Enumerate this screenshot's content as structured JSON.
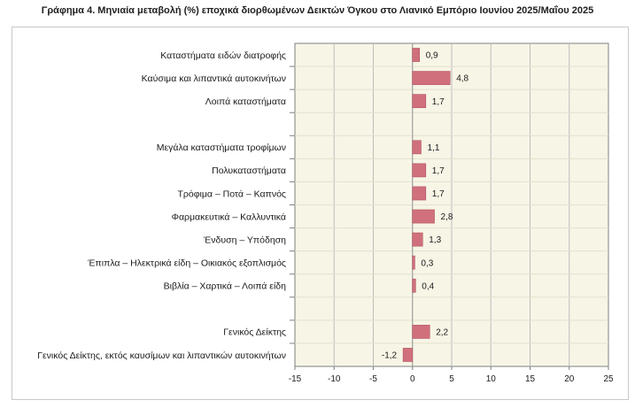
{
  "title": "Γράφημα 4. Μηνιαία μεταβολή (%) εποχικά διορθωμένων Δεικτών Όγκου στο Λιανικό Εμπόριο Ιουνίου 2025/Μαΐου 2025",
  "chart_data": {
    "type": "bar",
    "orientation": "horizontal",
    "categories": [
      "Καταστήματα ειδών διατροφής",
      "Καύσιμα και λιπαντικά αυτοκινήτων",
      "Λοιπά καταστήματα",
      "",
      "Μεγάλα καταστήματα τροφίμων",
      "Πολυκαταστήματα",
      "Τρόφιμα – Ποτά – Καπνός",
      "Φαρμακευτικά – Καλλυντικά",
      "Ένδυση – Υπόδηση",
      "Έπιπλα – Ηλεκτρικά είδη – Οικιακός εξοπλισμός",
      "Βιβλία – Χαρτικά – Λοιπά είδη",
      "",
      "Γενικός Δείκτης",
      "Γενικός Δείκτης, εκτός καυσίμων και λιπαντικών αυτοκινήτων"
    ],
    "values": [
      0.9,
      4.8,
      1.7,
      null,
      1.1,
      1.7,
      1.7,
      2.8,
      1.3,
      0.3,
      0.4,
      null,
      2.2,
      -1.2
    ],
    "value_labels": [
      "0,9",
      "4,8",
      "1,7",
      "",
      "1,1",
      "1,7",
      "1,7",
      "2,8",
      "1,3",
      "0,3",
      "0,4",
      "",
      "2,2",
      "-1,2"
    ],
    "xlim": [
      -15,
      25
    ],
    "xticks": [
      -15,
      -10,
      -5,
      0,
      5,
      10,
      15,
      20,
      25
    ],
    "bar_color": "#d0707c",
    "plot_background": "#f7f5e6",
    "grid": true,
    "legend": "none"
  }
}
